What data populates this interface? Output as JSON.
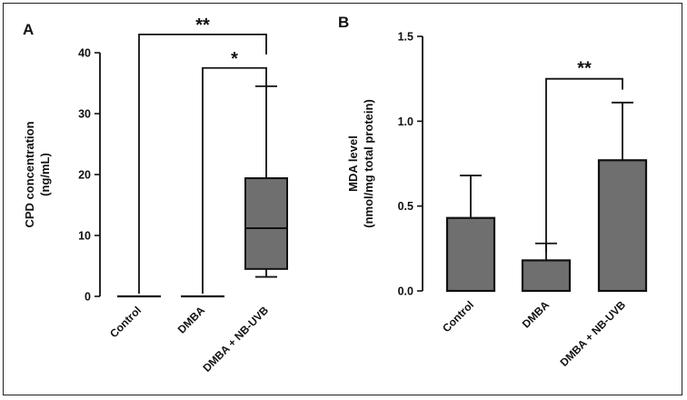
{
  "colors": {
    "box_fill": "#6f6f6f",
    "bar_fill": "#6f6f6f",
    "stroke": "#111111"
  },
  "chart_data": [
    {
      "type": "box",
      "panel": "A",
      "ylabel_line1": "CPD concentration",
      "ylabel_line2": "(ng/mL)",
      "ylim": [
        0,
        40
      ],
      "yticks": [
        0,
        10,
        20,
        30,
        40
      ],
      "categories": [
        "Control",
        "DMBA",
        "DMBA + NB-UVB"
      ],
      "boxes": [
        {
          "min": 0,
          "q1": 0,
          "median": 0,
          "q3": 0,
          "max": 0
        },
        {
          "min": 0,
          "q1": 0,
          "median": 0,
          "q3": 0,
          "max": 0
        },
        {
          "min": 3.2,
          "q1": 4.5,
          "median": 11.2,
          "q3": 19.4,
          "max": 34.5
        }
      ],
      "significance": [
        {
          "from": 0,
          "to": 2,
          "label": "**",
          "y": 43
        },
        {
          "from": 1,
          "to": 2,
          "label": "*",
          "y": 37.5
        }
      ]
    },
    {
      "type": "bar",
      "panel": "B",
      "ylabel_line1": "MDA level",
      "ylabel_line2": "(nmol/mg total protein)",
      "ylim": [
        0,
        1.5
      ],
      "yticks": [
        "0.0",
        "0.5",
        "1.0",
        "1.5"
      ],
      "categories": [
        "Control",
        "DMBA",
        "DMBA + NB-UVB"
      ],
      "values": [
        0.43,
        0.18,
        0.77
      ],
      "errors": [
        0.25,
        0.1,
        0.34
      ],
      "significance": [
        {
          "from": 1,
          "to": 2,
          "label": "**",
          "y": 1.25
        }
      ]
    }
  ]
}
